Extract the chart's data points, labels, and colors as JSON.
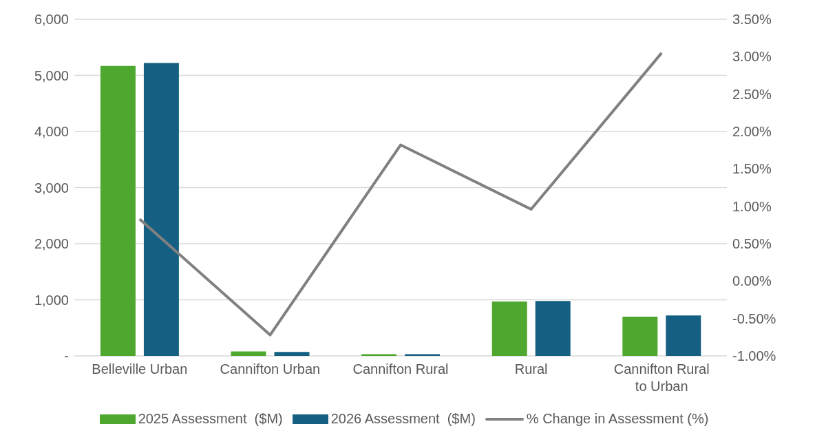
{
  "chart_data": {
    "type": "bar",
    "categories": [
      "Belleville Urban",
      "Cannifton Urban",
      "Cannifton Rural",
      "Rural",
      "Cannifton Rural to Urban"
    ],
    "series": [
      {
        "name": "2025 Assessment  ($M)",
        "color": "#4ea72e",
        "values": [
          5170,
          80,
          30,
          970,
          700
        ]
      },
      {
        "name": "2026 Assessment  ($M)",
        "color": "#156082",
        "values": [
          5220,
          70,
          30,
          980,
          720
        ]
      },
      {
        "name": "% Change in Assessment (%)",
        "type": "line",
        "axis": "y2",
        "color": "#808080",
        "values": [
          0.83,
          -0.72,
          1.82,
          0.96,
          3.05
        ]
      }
    ],
    "ylim": [
      0,
      6000
    ],
    "yticks": [
      {
        "value": 0,
        "label": "-"
      },
      {
        "value": 1000,
        "label": "1,000"
      },
      {
        "value": 2000,
        "label": "2,000"
      },
      {
        "value": 3000,
        "label": "3,000"
      },
      {
        "value": 4000,
        "label": "4,000"
      },
      {
        "value": 5000,
        "label": "5,000"
      },
      {
        "value": 6000,
        "label": "6,000"
      }
    ],
    "y2lim": [
      -1,
      3.5
    ],
    "y2ticks": [
      {
        "value": -1,
        "label": "-1.00%"
      },
      {
        "value": -0.5,
        "label": "-0.50%"
      },
      {
        "value": 0,
        "label": "0.00%"
      },
      {
        "value": 0.5,
        "label": "0.50%"
      },
      {
        "value": 1,
        "label": "1.00%"
      },
      {
        "value": 1.5,
        "label": "1.50%"
      },
      {
        "value": 2,
        "label": "2.00%"
      },
      {
        "value": 2.5,
        "label": "2.50%"
      },
      {
        "value": 3,
        "label": "3.00%"
      },
      {
        "value": 3.5,
        "label": "3.50%"
      }
    ],
    "grid": "y",
    "legend": "bottom",
    "marker": "none",
    "line_style": "solid"
  }
}
